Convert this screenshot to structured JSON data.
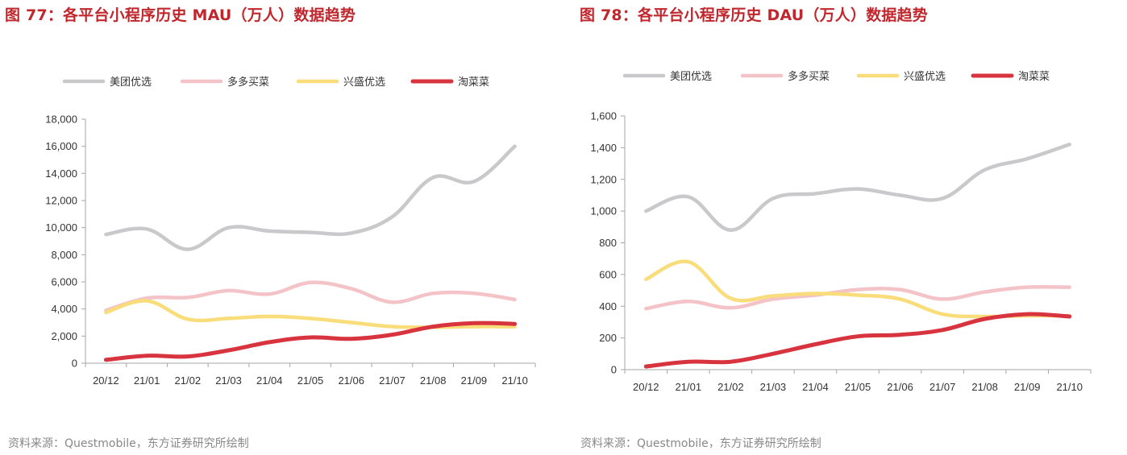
{
  "figures": [
    {
      "title": "图 77：各平台小程序历史 MAU（万人）数据趋势",
      "source": "资料来源：Questmobile，东方证券研究所绘制"
    },
    {
      "title": "图 78：各平台小程序历史 DAU（万人）数据趋势",
      "source": "资料来源：Questmobile，东方证券研究所绘制"
    }
  ],
  "chart_data": [
    {
      "type": "line",
      "title": "图 77：各平台小程序历史 MAU（万人）数据趋势",
      "categories": [
        "20/12",
        "21/01",
        "21/02",
        "21/03",
        "21/04",
        "21/05",
        "21/06",
        "21/07",
        "21/08",
        "21/09",
        "21/10"
      ],
      "ylim": [
        0,
        18000
      ],
      "yticks": [
        0,
        2000,
        4000,
        6000,
        8000,
        10000,
        12000,
        14000,
        16000,
        18000
      ],
      "ytick_labels": [
        "0",
        "2,000",
        "4,000",
        "6,000",
        "8,000",
        "10,000",
        "12,000",
        "14,000",
        "16,000",
        "18,000"
      ],
      "grid": false,
      "legend_position": "top",
      "series": [
        {
          "name": "美团优选",
          "color": "#c9c9cc",
          "values": [
            9500,
            9900,
            8400,
            10000,
            9750,
            9650,
            9600,
            10800,
            13700,
            13400,
            16000
          ]
        },
        {
          "name": "多多买菜",
          "color": "#f4c3c8",
          "values": [
            3900,
            4800,
            4850,
            5350,
            5100,
            5950,
            5500,
            4500,
            5150,
            5150,
            4700
          ]
        },
        {
          "name": "兴盛优选",
          "color": "#f8dd7a",
          "values": [
            3750,
            4600,
            3250,
            3300,
            3450,
            3300,
            3000,
            2700,
            2650,
            2700,
            2700
          ]
        },
        {
          "name": "淘菜菜",
          "color": "#d7343f",
          "values": [
            250,
            550,
            500,
            950,
            1550,
            1900,
            1800,
            2100,
            2700,
            2950,
            2900
          ]
        }
      ]
    },
    {
      "type": "line",
      "title": "图 78：各平台小程序历史 DAU（万人）数据趋势",
      "categories": [
        "20/12",
        "21/01",
        "21/02",
        "21/03",
        "21/04",
        "21/05",
        "21/06",
        "21/07",
        "21/08",
        "21/09",
        "21/10"
      ],
      "ylim": [
        0,
        1600
      ],
      "yticks": [
        0,
        200,
        400,
        600,
        800,
        1000,
        1200,
        1400,
        1600
      ],
      "ytick_labels": [
        "0",
        "200",
        "400",
        "600",
        "800",
        "1,000",
        "1,200",
        "1,400",
        "1,600"
      ],
      "grid": false,
      "legend_position": "top",
      "series": [
        {
          "name": "美团优选",
          "color": "#c9c9cc",
          "values": [
            1000,
            1090,
            880,
            1080,
            1110,
            1140,
            1100,
            1080,
            1260,
            1330,
            1420
          ]
        },
        {
          "name": "多多买菜",
          "color": "#f4c3c8",
          "values": [
            385,
            430,
            390,
            445,
            470,
            505,
            505,
            445,
            490,
            520,
            520
          ]
        },
        {
          "name": "兴盛优选",
          "color": "#f8dd7a",
          "values": [
            570,
            680,
            450,
            465,
            480,
            470,
            445,
            350,
            335,
            340,
            340
          ]
        },
        {
          "name": "淘菜菜",
          "color": "#d7343f",
          "values": [
            20,
            50,
            50,
            100,
            160,
            210,
            220,
            250,
            320,
            350,
            335
          ]
        }
      ]
    }
  ]
}
